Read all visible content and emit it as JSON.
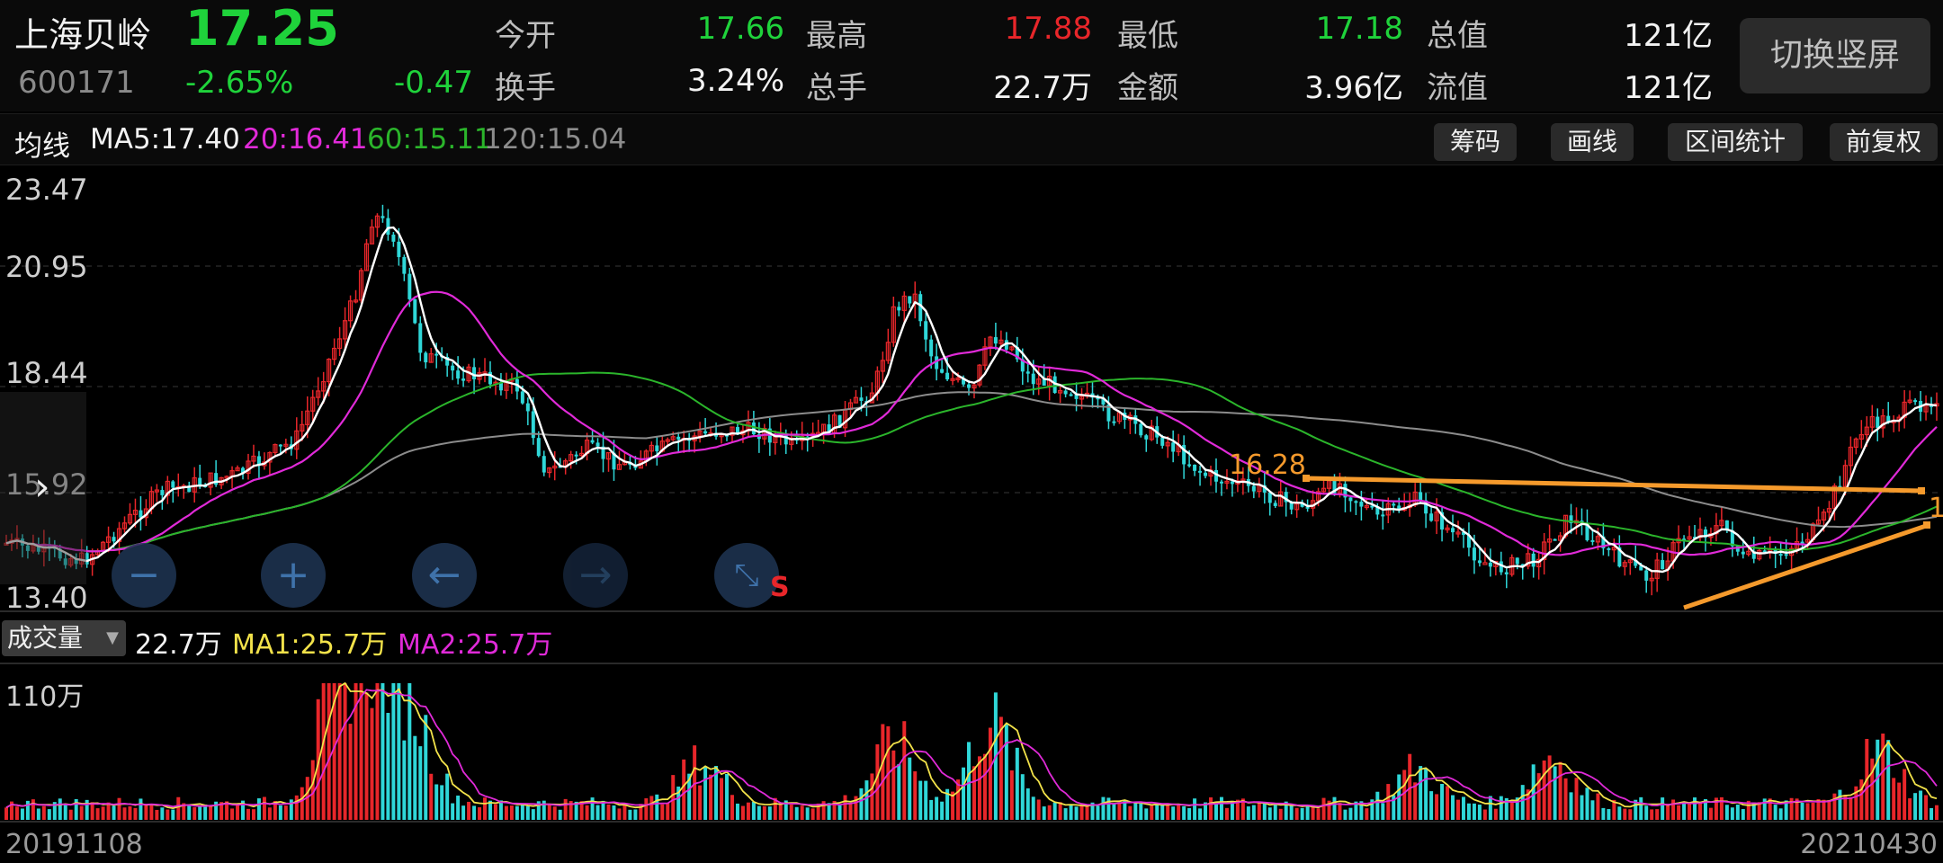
{
  "quote": {
    "name": "上海贝岭",
    "price": "17.25",
    "code": "600171",
    "change_pct": "-2.65%",
    "change": "-0.47",
    "fields": [
      {
        "label": "今开",
        "value": "17.66",
        "color": "green"
      },
      {
        "label": "最高",
        "value": "17.88",
        "color": "red"
      },
      {
        "label": "最低",
        "value": "17.18",
        "color": "green"
      },
      {
        "label": "总值",
        "value": "121亿",
        "color": "white"
      },
      {
        "label": "换手",
        "value": "3.24%",
        "color": "white"
      },
      {
        "label": "总手",
        "value": "22.7万",
        "color": "white"
      },
      {
        "label": "金额",
        "value": "3.96亿",
        "color": "white"
      },
      {
        "label": "流值",
        "value": "121亿",
        "color": "white"
      }
    ],
    "switch_label": "切换竖屏"
  },
  "ma_bar": {
    "title": "均线",
    "ma5": "MA5:17.40",
    "ma20": "20:16.41",
    "ma60": "60:15.11",
    "ma120": "120:15.04",
    "tools": [
      "筹码",
      "画线",
      "区间统计",
      "前复权"
    ]
  },
  "colors": {
    "up": "#e8262a",
    "down": "#2fd7d8",
    "ma5": "#ffffff",
    "ma20": "#e02ad8",
    "ma60": "#2bb52b",
    "ma120": "#8c8c8c",
    "annotation": "#f59a2c",
    "vol_ma1": "#f2e24a",
    "vol_ma2": "#e02ad8"
  },
  "price_axis": [
    "23.47",
    "20.95",
    "18.44",
    "15.92",
    "13.40"
  ],
  "annotation_label": "16.28",
  "annotation_label_clipped": "1",
  "volume": {
    "selector": "成交量",
    "value": "22.7万",
    "ma1": "MA1:25.7万",
    "ma2": "MA2:25.7万",
    "axis_max": "110万"
  },
  "dates": {
    "start": "20191108",
    "end": "20210430"
  },
  "nav_icons": [
    "minus-icon",
    "plus-icon",
    "arrow-left-icon",
    "arrow-right-icon",
    "collapse-icon"
  ],
  "nav_s_label": "S"
}
